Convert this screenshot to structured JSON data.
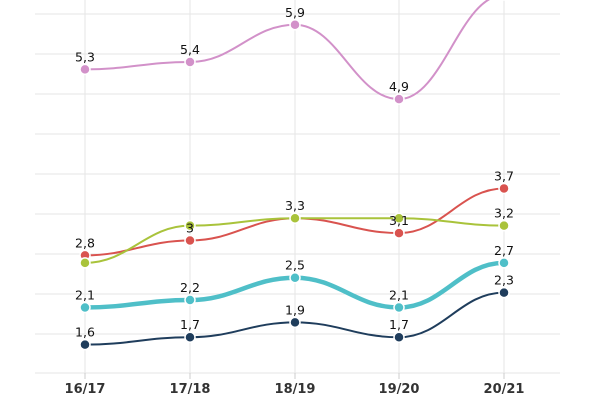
{
  "chart_data": {
    "type": "line",
    "categories": [
      "16/17",
      "17/18",
      "18/19",
      "19/20",
      "20/21"
    ],
    "ylim": [
      1.3,
      6.3
    ],
    "grid": true,
    "series": [
      {
        "values": [
          5.3,
          5.4,
          5.9,
          4.9,
          6.3
        ],
        "labels": [
          "5,3",
          "5,4",
          "5,9",
          "4,9",
          ""
        ],
        "color": "#d291c9",
        "width": 2
      },
      {
        "values": [
          2.8,
          3.0,
          3.3,
          3.1,
          3.7
        ],
        "labels": [
          "2,8",
          "3",
          "3,3",
          "3,1",
          "3,7"
        ],
        "color": "#d9534f",
        "width": 2
      },
      {
        "values": [
          2.7,
          3.2,
          3.3,
          3.3,
          3.2
        ],
        "labels": [
          "",
          "",
          "",
          "",
          "3,2"
        ],
        "color": "#a9c33b",
        "width": 2
      },
      {
        "values": [
          2.1,
          2.2,
          2.5,
          2.1,
          2.7
        ],
        "labels": [
          "2,1",
          "2,2",
          "2,5",
          "2,1",
          "2,7"
        ],
        "color": "#4fbfc8",
        "width": 4.5
      },
      {
        "values": [
          1.6,
          1.7,
          1.9,
          1.7,
          2.3
        ],
        "labels": [
          "1,6",
          "1,7",
          "1,9",
          "1,7",
          "2,3"
        ],
        "color": "#1f3d5c",
        "width": 2
      }
    ]
  }
}
